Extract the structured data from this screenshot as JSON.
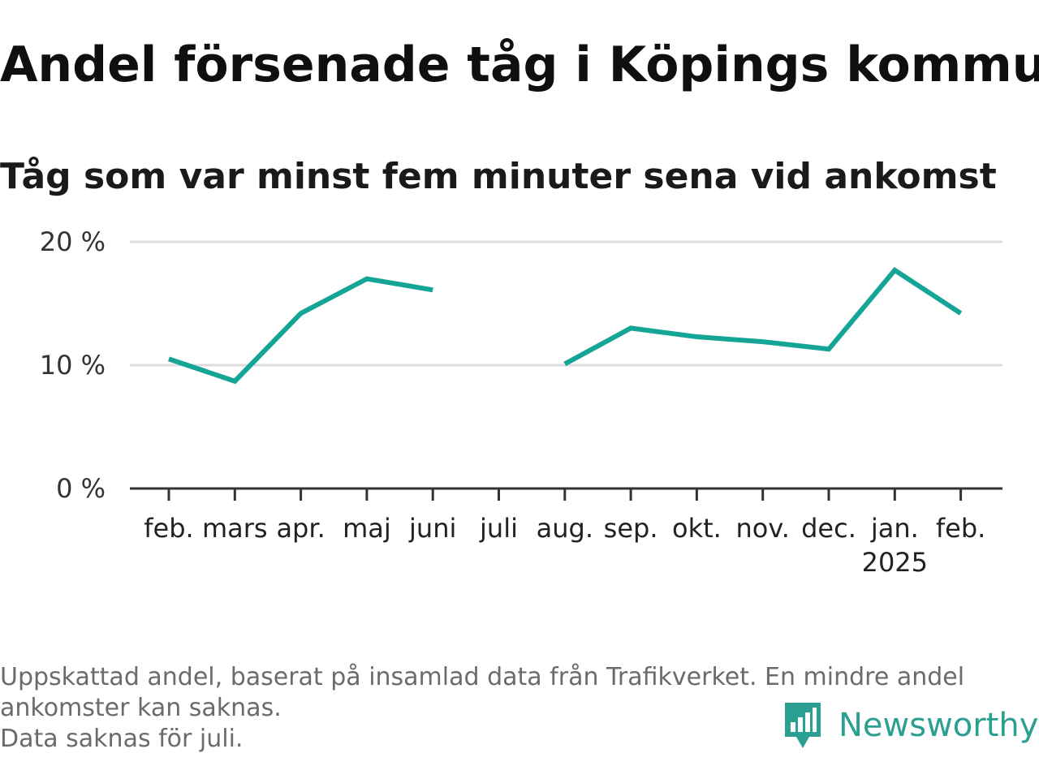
{
  "title": "Andel försenade tåg i Köpings kommun",
  "subtitle": "Tåg som var minst fem minuter sena vid ankomst",
  "chart_data": {
    "type": "line",
    "categories": [
      "feb.",
      "mars",
      "apr.",
      "maj",
      "juni",
      "juli",
      "aug.",
      "sep.",
      "okt.",
      "nov.",
      "dec.",
      "jan.",
      "feb."
    ],
    "year_labels": [
      "",
      "",
      "",
      "",
      "",
      "",
      "",
      "",
      "",
      "",
      "",
      "2025",
      ""
    ],
    "series": [
      {
        "values": [
          10.5,
          8.7,
          14.2,
          17.0,
          16.1,
          null,
          10.1,
          13.0,
          12.3,
          11.9,
          11.3,
          17.7,
          14.2
        ],
        "color": "#14a597"
      }
    ],
    "ylim": [
      0,
      20
    ],
    "yticks": [
      0,
      10,
      20
    ],
    "ytick_labels": [
      "0 %",
      "10 %",
      "20 %"
    ],
    "grid": true,
    "xlabel": "",
    "ylabel": ""
  },
  "footnote": {
    "line1": "Uppskattad andel, baserat på insamlad data från Trafikverket. En mindre andel",
    "line2": "ankomster kan saknas.",
    "line3": "Data saknas för juli."
  },
  "brand": {
    "name": "Newsworthy",
    "color": "#2a9f92",
    "icon": "newsworthy-logo-icon"
  }
}
